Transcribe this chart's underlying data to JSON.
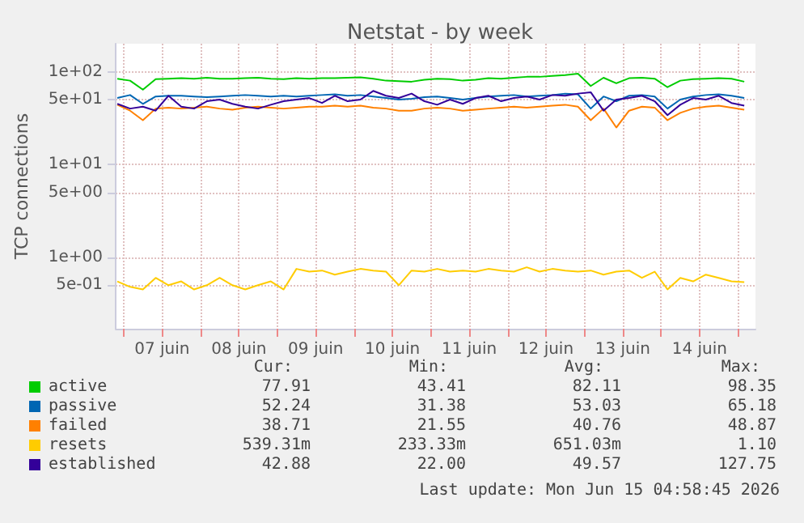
{
  "chart_data": {
    "type": "line",
    "title": "Netstat - by week",
    "ylabel": "TCP connections",
    "log": "y",
    "grid": true,
    "legend": "bottom",
    "marker": "none",
    "line_style": "solid",
    "xlim": [
      "2026-06-06T21:30",
      "2026-06-15T05:30"
    ],
    "xticks": [
      {
        "value": "2026-06-07T00:00",
        "label": null
      },
      {
        "value": "2026-06-07T12:00",
        "label": "07 juin"
      },
      {
        "value": "2026-06-08T00:00",
        "label": null
      },
      {
        "value": "2026-06-08T12:00",
        "label": "08 juin"
      },
      {
        "value": "2026-06-09T00:00",
        "label": null
      },
      {
        "value": "2026-06-09T12:00",
        "label": "09 juin"
      },
      {
        "value": "2026-06-10T00:00",
        "label": null
      },
      {
        "value": "2026-06-10T12:00",
        "label": "10 juin"
      },
      {
        "value": "2026-06-11T00:00",
        "label": null
      },
      {
        "value": "2026-06-11T12:00",
        "label": "11 juin"
      },
      {
        "value": "2026-06-12T00:00",
        "label": null
      },
      {
        "value": "2026-06-12T12:00",
        "label": "12 juin"
      },
      {
        "value": "2026-06-13T00:00",
        "label": null
      },
      {
        "value": "2026-06-13T12:00",
        "label": "13 juin"
      },
      {
        "value": "2026-06-14T00:00",
        "label": null
      },
      {
        "value": "2026-06-14T12:00",
        "label": "14 juin"
      },
      {
        "value": "2026-06-15T00:00",
        "label": null
      }
    ],
    "ylim": [
      0.17,
      200
    ],
    "yticks": [
      {
        "value": 0.5,
        "label": "5e-01"
      },
      {
        "value": 1,
        "label": "1e+00"
      },
      {
        "value": 5,
        "label": "5e+00"
      },
      {
        "value": 10,
        "label": "1e+01"
      },
      {
        "value": 50,
        "label": "5e+01"
      },
      {
        "value": 100,
        "label": "1e+02"
      }
    ],
    "x": [
      "2026-06-06T22:00",
      "2026-06-07T02:00",
      "2026-06-07T06:00",
      "2026-06-07T10:00",
      "2026-06-07T14:00",
      "2026-06-07T18:00",
      "2026-06-07T22:00",
      "2026-06-08T02:00",
      "2026-06-08T06:00",
      "2026-06-08T10:00",
      "2026-06-08T14:00",
      "2026-06-08T18:00",
      "2026-06-08T22:00",
      "2026-06-09T02:00",
      "2026-06-09T06:00",
      "2026-06-09T10:00",
      "2026-06-09T14:00",
      "2026-06-09T18:00",
      "2026-06-09T22:00",
      "2026-06-10T02:00",
      "2026-06-10T06:00",
      "2026-06-10T10:00",
      "2026-06-10T14:00",
      "2026-06-10T18:00",
      "2026-06-10T22:00",
      "2026-06-11T02:00",
      "2026-06-11T06:00",
      "2026-06-11T10:00",
      "2026-06-11T14:00",
      "2026-06-11T18:00",
      "2026-06-11T22:00",
      "2026-06-12T02:00",
      "2026-06-12T06:00",
      "2026-06-12T10:00",
      "2026-06-12T14:00",
      "2026-06-12T18:00",
      "2026-06-12T22:00",
      "2026-06-13T02:00",
      "2026-06-13T06:00",
      "2026-06-13T10:00",
      "2026-06-13T14:00",
      "2026-06-13T18:00",
      "2026-06-13T22:00",
      "2026-06-14T02:00",
      "2026-06-14T06:00",
      "2026-06-14T10:00",
      "2026-06-14T14:00",
      "2026-06-14T18:00",
      "2026-06-14T22:00",
      "2026-06-15T02:00"
    ],
    "series": [
      {
        "name": "active",
        "color": "#00cc00",
        "values": [
          84,
          80,
          64,
          83,
          84,
          85,
          84,
          86,
          84,
          84,
          85,
          86,
          84,
          83,
          85,
          84,
          85,
          85,
          86,
          87,
          84,
          80,
          79,
          78,
          82,
          84,
          83,
          80,
          82,
          85,
          84,
          86,
          88,
          88,
          90,
          92,
          95,
          70,
          86,
          75,
          85,
          86,
          84,
          68,
          80,
          83,
          84,
          85,
          84,
          78
        ]
      },
      {
        "name": "passive",
        "color": "#0066b3",
        "values": [
          52,
          56,
          45,
          54,
          55,
          55,
          54,
          53,
          54,
          55,
          56,
          55,
          54,
          55,
          54,
          55,
          56,
          57,
          55,
          56,
          54,
          52,
          50,
          51,
          53,
          54,
          52,
          50,
          52,
          54,
          55,
          56,
          54,
          55,
          56,
          58,
          57,
          40,
          54,
          48,
          55,
          56,
          54,
          40,
          50,
          54,
          56,
          57,
          55,
          52
        ]
      },
      {
        "name": "failed",
        "color": "#ff8000",
        "values": [
          44,
          38,
          30,
          40,
          41,
          40,
          41,
          42,
          40,
          39,
          41,
          42,
          41,
          40,
          41,
          42,
          42,
          43,
          42,
          43,
          41,
          40,
          38,
          38,
          40,
          41,
          40,
          38,
          39,
          40,
          41,
          42,
          41,
          42,
          43,
          44,
          42,
          30,
          40,
          25,
          38,
          42,
          41,
          30,
          36,
          40,
          42,
          43,
          41,
          39
        ]
      },
      {
        "name": "resets",
        "color": "#ffcc00",
        "values": [
          0.55,
          0.48,
          0.45,
          0.6,
          0.5,
          0.55,
          0.45,
          0.5,
          0.6,
          0.5,
          0.45,
          0.5,
          0.55,
          0.45,
          0.75,
          0.7,
          0.72,
          0.65,
          0.7,
          0.75,
          0.72,
          0.7,
          0.5,
          0.72,
          0.7,
          0.75,
          0.7,
          0.72,
          0.7,
          0.75,
          0.72,
          0.7,
          0.78,
          0.7,
          0.75,
          0.72,
          0.7,
          0.72,
          0.65,
          0.7,
          0.72,
          0.6,
          0.7,
          0.45,
          0.6,
          0.55,
          0.65,
          0.6,
          0.55,
          0.54
        ]
      },
      {
        "name": "established",
        "color": "#330099",
        "values": [
          45,
          40,
          42,
          38,
          55,
          42,
          40,
          48,
          50,
          45,
          42,
          40,
          44,
          48,
          50,
          52,
          46,
          55,
          48,
          50,
          62,
          55,
          52,
          58,
          48,
          44,
          50,
          45,
          52,
          55,
          48,
          52,
          54,
          50,
          56,
          55,
          58,
          60,
          38,
          50,
          52,
          55,
          48,
          34,
          44,
          52,
          50,
          55,
          46,
          43
        ]
      }
    ],
    "annotations": [
      "Cur:",
      "Min:",
      "Avg:",
      "Max:",
      "77.91",
      "43.41",
      "82.11",
      "98.35",
      "52.24",
      "31.38",
      "53.03",
      "65.18",
      "38.71",
      "21.55",
      "40.76",
      "48.87",
      "539.31m",
      "233.33m",
      "651.03m",
      "1.10",
      "42.88",
      "22.00",
      "49.57",
      "127.75",
      "Last update: Mon Jun 15 04:58:45 2026"
    ]
  }
}
